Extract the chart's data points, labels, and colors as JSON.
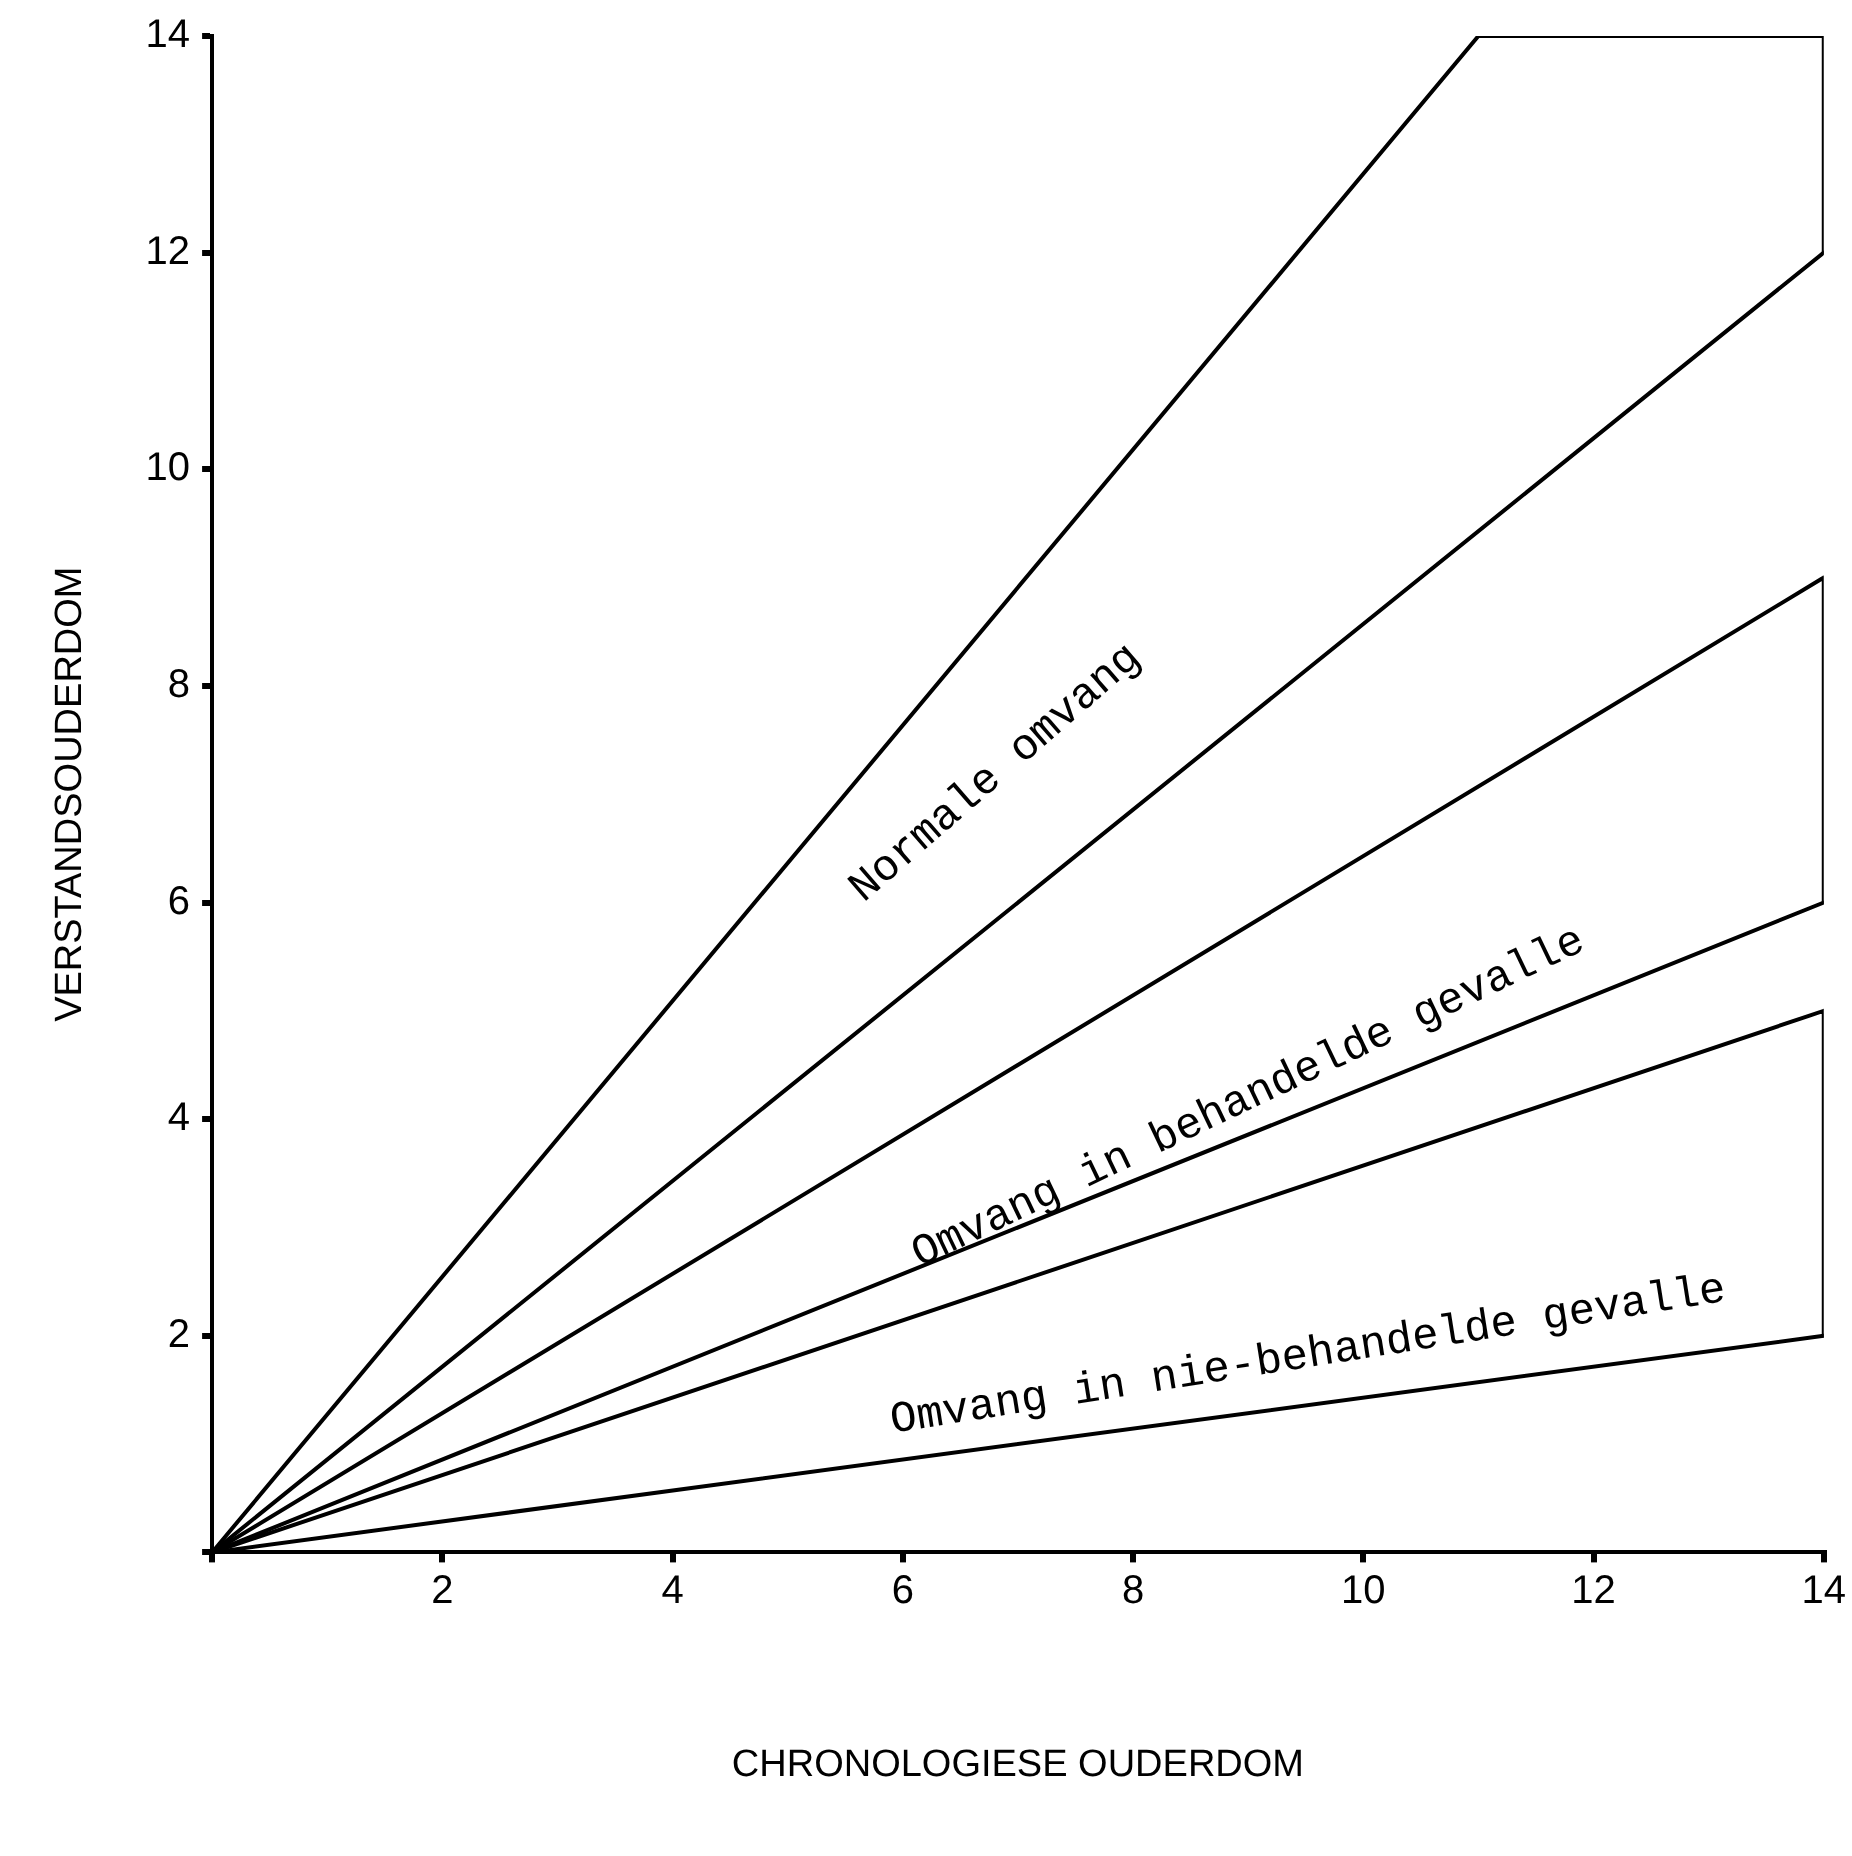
{
  "chart_data": {
    "type": "line",
    "xlabel": "CHRONOLOGIESE OUDERDOM",
    "ylabel": "VERSTANDSOUDERDOM",
    "xlim": [
      0,
      14
    ],
    "ylim": [
      0,
      14
    ],
    "xticks": [
      {
        "value": 0,
        "label": null
      },
      2,
      4,
      6,
      8,
      10,
      12,
      14
    ],
    "yticks": [
      {
        "value": 0,
        "label": null
      },
      2,
      4,
      6,
      8,
      10,
      12,
      14
    ],
    "series": [
      {
        "color": "#000000",
        "x": [
          0,
          11,
          14,
          14
        ],
        "values": [
          0,
          14,
          14,
          12
        ]
      },
      {
        "color": "#000000",
        "x": [
          0,
          14
        ],
        "values": [
          0,
          12
        ]
      },
      {
        "color": "#000000",
        "x": [
          0,
          14,
          14
        ],
        "values": [
          0,
          9,
          6
        ]
      },
      {
        "color": "#000000",
        "x": [
          0,
          14
        ],
        "values": [
          0,
          6
        ]
      },
      {
        "color": "#000000",
        "x": [
          0,
          14,
          14
        ],
        "values": [
          0,
          5,
          2
        ]
      },
      {
        "color": "#000000",
        "x": [
          0,
          14
        ],
        "values": [
          0,
          2
        ]
      }
    ],
    "annotations": [
      "Normale omvang",
      "Omvang in behandelde gevalle",
      "Omvang in nie-behandelde gevalle"
    ],
    "grid": false,
    "legend": false,
    "marker": "none",
    "line_style": "solid"
  }
}
